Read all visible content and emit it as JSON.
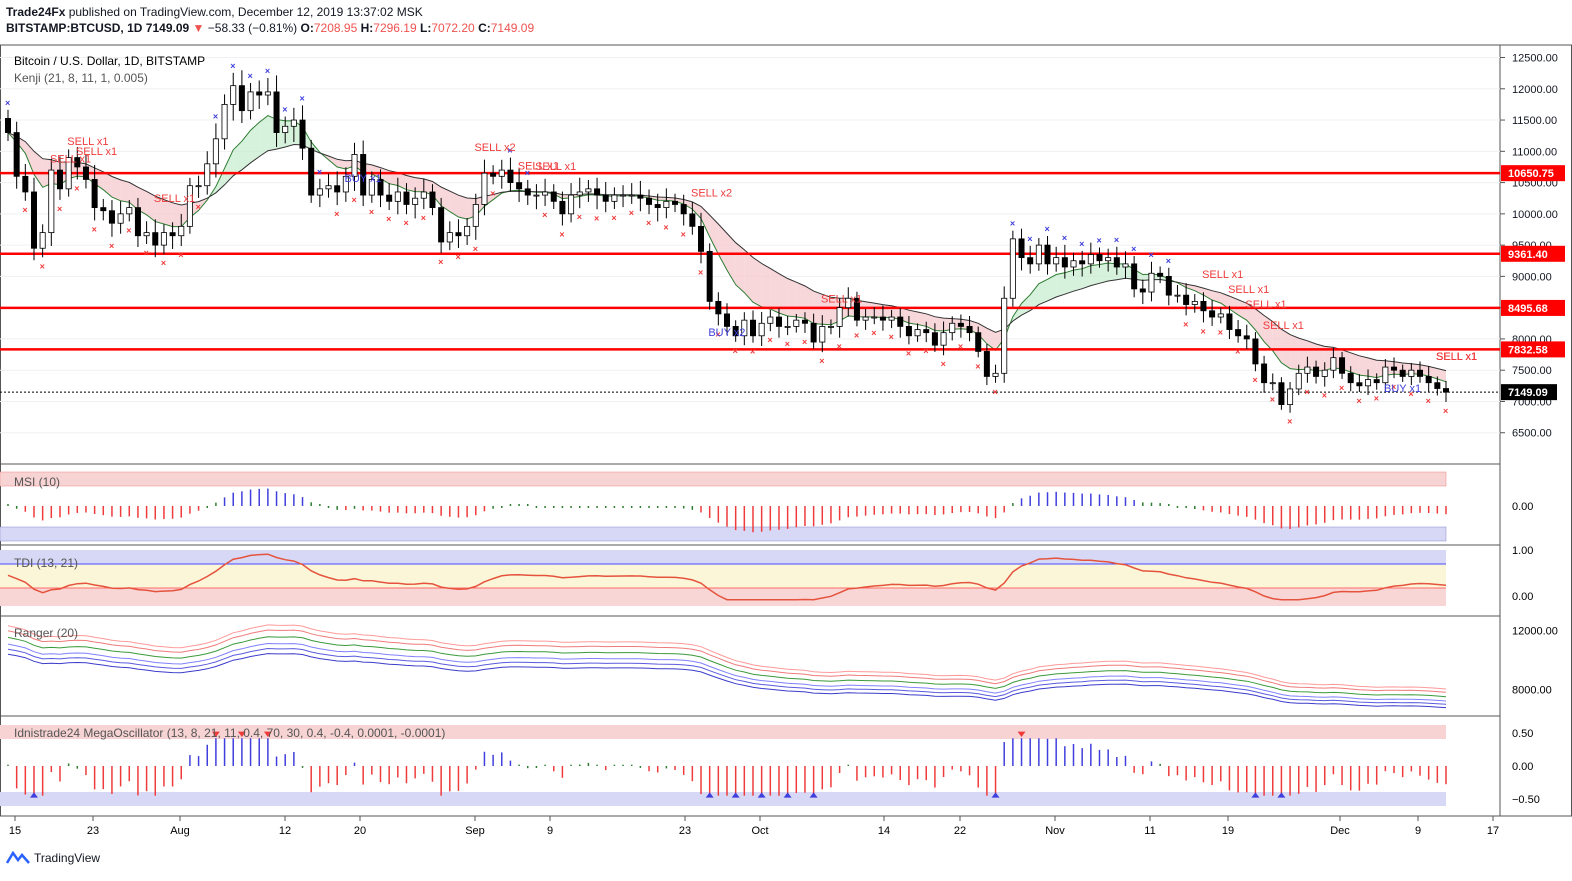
{
  "header": {
    "line1_author": "Trade24Fx",
    "line1_rest": " published on TradingView.com, December 12, 2019 13:37:02 MSK",
    "symbol": "BITSTAMP:BTCUSD, 1D",
    "last": "7149.09",
    "change": "−58.33 (−0.81%)",
    "o_label": "O:",
    "o": "7208.95",
    "h_label": "H:",
    "h": "7296.19",
    "l_label": "L:",
    "l": "7072.20",
    "c_label": "C:",
    "c": "7149.09"
  },
  "footer": {
    "brand": "TradingView"
  },
  "colors": {
    "up": "#ffffff",
    "down": "#000000",
    "level": "#ff0000",
    "buy": "#3f3fdd",
    "sell": "#ef3b3b"
  },
  "chart_data": {
    "type": "candlestick",
    "main_title": "Bitcoin / U.S. Dollar, 1D, BITSTAMP",
    "kenji_title": "Kenji (21, 8, 11, 1, 0.005)",
    "price_ticks": [
      "12500.00",
      "12000.00",
      "11500.00",
      "11000.00",
      "10500.00",
      "10000.00",
      "9500.00",
      "9000.00",
      "8500.00",
      "8000.00",
      "7500.00",
      "7000.00",
      "6500.00"
    ],
    "price_range": [
      6000,
      12700
    ],
    "levels": [
      10650.75,
      9361.4,
      8495.68,
      7832.58
    ],
    "level_labels": [
      "10650.75",
      "9361.40",
      "8495.68",
      "7832.58"
    ],
    "last_price": 7149.09,
    "last_label": "7149.09",
    "closes": [
      11300,
      10600,
      10350,
      9450,
      9700,
      10700,
      10400,
      10900,
      10750,
      10550,
      10100,
      10050,
      9850,
      10000,
      10100,
      9650,
      9700,
      9500,
      9700,
      9650,
      9800,
      10450,
      10450,
      10800,
      11200,
      11750,
      12050,
      11650,
      11950,
      11900,
      11950,
      11300,
      11400,
      11500,
      11050,
      10300,
      10400,
      10450,
      10350,
      10600,
      10950,
      10300,
      10550,
      10300,
      10200,
      10350,
      10150,
      10250,
      10350,
      10100,
      9550,
      9700,
      9650,
      9800,
      10150,
      10650,
      10600,
      10700,
      10500,
      10400,
      10300,
      10300,
      10350,
      10200,
      10000,
      10300,
      10350,
      10400,
      10300,
      10200,
      10300,
      10300,
      10300,
      10250,
      10150,
      10100,
      10200,
      10150,
      10000,
      9800,
      9400,
      8600,
      8400,
      8200,
      8050,
      8300,
      8050,
      8250,
      8350,
      8200,
      8200,
      8300,
      8250,
      7950,
      8200,
      8200,
      8500,
      8650,
      8300,
      8350,
      8350,
      8300,
      8350,
      8200,
      8050,
      8150,
      8100,
      7900,
      8100,
      8250,
      8200,
      8100,
      7800,
      7400,
      7450,
      8650,
      9600,
      9300,
      9200,
      9500,
      9200,
      9300,
      9150,
      9250,
      9200,
      9350,
      9250,
      9300,
      9150,
      9200,
      8800,
      8750,
      9050,
      9000,
      8700,
      8700,
      8550,
      8600,
      8450,
      8350,
      8400,
      8150,
      8050,
      8000,
      7600,
      7300,
      7300,
      6950,
      7200,
      7450,
      7550,
      7400,
      7500,
      7700,
      7450,
      7300,
      7250,
      7350,
      7300,
      7550,
      7500,
      7400,
      7500,
      7400,
      7300,
      7207,
      7149
    ],
    "msi_title": "MSI (10)",
    "msi_ticks": [
      "0.00"
    ],
    "tdi_title": "TDI (13, 21)",
    "tdi_ticks": [
      "1.00",
      "0.00"
    ],
    "ranger_title": "Ranger (20)",
    "ranger_ticks": [
      "12000.00",
      "8000.00"
    ],
    "mega_title": "Idnistrade24 MegaOscillator (13, 8, 21, 11, 0.4, 70, 30, 0.4, -0.4, 0.0001, -0.0001)",
    "mega_ticks": [
      "0.50",
      "0.00",
      "−0.50"
    ],
    "x_labels": [
      "15",
      "23",
      "Aug",
      "12",
      "20",
      "Sep",
      "9",
      "23",
      "Oct",
      "14",
      "22",
      "Nov",
      "11",
      "19",
      "Dec",
      "9",
      "17"
    ],
    "signal_labels": [
      "SELL x1",
      "SELL x1",
      "SELL x1",
      "SELL x1",
      "BUY x1",
      "SELL x2",
      "SELL x1",
      "SELL x1",
      "SELL x2",
      "BUY x2",
      "SELL x1",
      "SELL x1",
      "SELL x1",
      "SELL x1",
      "SELL x1",
      "BUY x1",
      "SELL x1",
      "SELL x1",
      "SELL x1"
    ]
  }
}
